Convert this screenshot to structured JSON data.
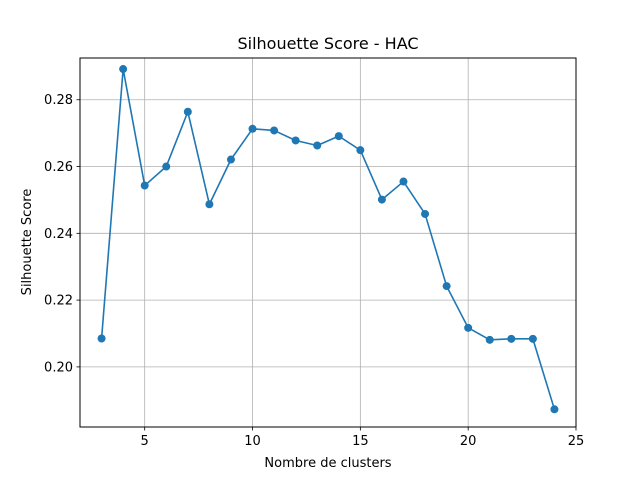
{
  "chart_data": {
    "type": "line",
    "title": "Silhouette Score - HAC",
    "xlabel": "Nombre de clusters",
    "ylabel": "Silhouette Score",
    "xlim": [
      2.0,
      25.0
    ],
    "ylim": [
      0.182,
      0.2925
    ],
    "xticks": [
      5,
      10,
      15,
      20,
      25
    ],
    "yticks": [
      0.2,
      0.22,
      0.24,
      0.26,
      0.28
    ],
    "ytick_labels": [
      "0.20",
      "0.22",
      "0.24",
      "0.26",
      "0.28"
    ],
    "grid": true,
    "color": "#1f77b4",
    "marker": "circle",
    "series": [
      {
        "x": [
          3,
          4,
          5,
          6,
          7,
          8,
          9,
          10,
          11,
          12,
          13,
          14,
          15,
          16,
          17,
          18,
          19,
          20,
          21,
          22,
          23,
          24
        ],
        "y": [
          0.2085,
          0.2892,
          0.2543,
          0.26,
          0.2764,
          0.2487,
          0.2621,
          0.2713,
          0.2708,
          0.2678,
          0.2663,
          0.2691,
          0.2649,
          0.2501,
          0.2555,
          0.2458,
          0.2242,
          0.2117,
          0.2081,
          0.2084,
          0.2084,
          0.1873
        ]
      }
    ]
  }
}
